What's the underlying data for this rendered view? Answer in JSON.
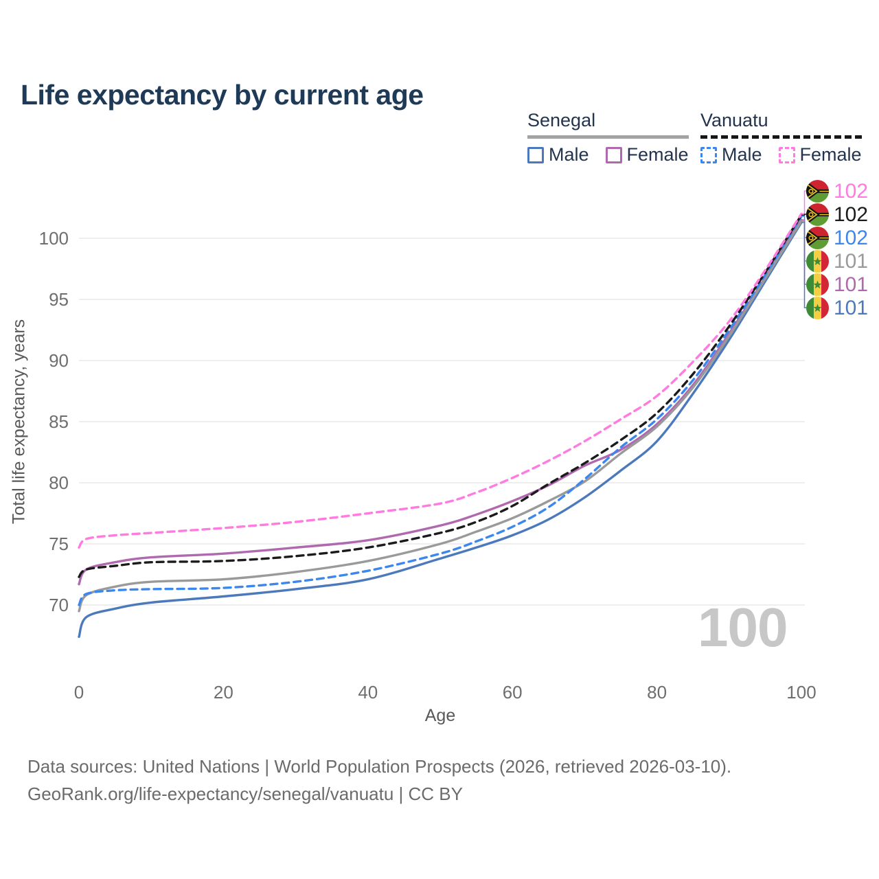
{
  "title": "Life expectancy by current age",
  "watermark": "100",
  "legend": {
    "groups": [
      {
        "label": "Senegal",
        "line_style": "solid",
        "line_color": "#a3a3a3",
        "items": [
          {
            "label": "Male",
            "color": "#4b79bb",
            "dashed": false
          },
          {
            "label": "Female",
            "color": "#b069ae",
            "dashed": false
          }
        ]
      },
      {
        "label": "Vanuatu",
        "line_style": "dashed",
        "line_color": "#161616",
        "items": [
          {
            "label": "Male",
            "color": "#3c87ee",
            "dashed": true
          },
          {
            "label": "Female",
            "color": "#ff7be0",
            "dashed": true
          }
        ]
      }
    ]
  },
  "footer": {
    "line1": "Data sources: United Nations | World Population Prospects (2026, retrieved 2026-03-10).",
    "line2": "GeoRank.org/life-expectancy/senegal/vanuatu | CC BY"
  },
  "chart_data": {
    "type": "line",
    "title": "Life expectancy by current age",
    "xlabel": "Age",
    "ylabel": "Total life expectancy, years",
    "xlim": [
      0,
      100
    ],
    "ylim": [
      66,
      103
    ],
    "x_ticks": [
      0,
      20,
      40,
      60,
      80,
      100
    ],
    "y_ticks": [
      70,
      75,
      80,
      85,
      90,
      95,
      100
    ],
    "grid": "horizontal",
    "legend_position": "top-right",
    "x": [
      0,
      1,
      5,
      10,
      20,
      30,
      40,
      50,
      55,
      60,
      65,
      70,
      75,
      80,
      85,
      90,
      95,
      100
    ],
    "series": [
      {
        "name": "Vanuatu Female",
        "country": "vanuatu",
        "color": "#ff7be0",
        "dashed": true,
        "end_label": "102",
        "values": [
          74.7,
          75.4,
          75.7,
          75.9,
          76.3,
          76.8,
          77.5,
          78.3,
          79.2,
          80.4,
          81.8,
          83.4,
          85.2,
          87.1,
          89.9,
          93.2,
          97.4,
          102.0
        ]
      },
      {
        "name": "Vanuatu Both sexes",
        "country": "vanuatu",
        "color": "#1b1b1b",
        "dashed": true,
        "end_label": "102",
        "values": [
          72.3,
          72.9,
          73.2,
          73.5,
          73.6,
          74.0,
          74.7,
          75.9,
          76.8,
          78.1,
          79.9,
          81.6,
          83.5,
          85.7,
          88.9,
          92.8,
          97.2,
          101.9
        ]
      },
      {
        "name": "Vanuatu Male",
        "country": "vanuatu",
        "color": "#3c87ee",
        "dashed": true,
        "end_label": "102",
        "values": [
          70.0,
          70.9,
          71.2,
          71.3,
          71.4,
          71.9,
          72.8,
          74.2,
          75.2,
          76.4,
          78.0,
          80.3,
          82.9,
          85.2,
          88.4,
          92.5,
          97.0,
          101.8
        ]
      },
      {
        "name": "Senegal Both sexes",
        "country": "senegal",
        "color": "#9a9a9a",
        "dashed": false,
        "end_label": "101",
        "values": [
          69.5,
          70.8,
          71.5,
          71.9,
          72.1,
          72.7,
          73.6,
          75.0,
          76.0,
          77.1,
          78.5,
          80.1,
          82.4,
          84.6,
          87.8,
          92.0,
          96.7,
          101.4
        ]
      },
      {
        "name": "Senegal Female",
        "country": "senegal",
        "color": "#b069ae",
        "dashed": false,
        "end_label": "101",
        "values": [
          71.7,
          72.9,
          73.5,
          73.9,
          74.2,
          74.7,
          75.3,
          76.5,
          77.4,
          78.5,
          79.8,
          81.4,
          82.7,
          84.8,
          88.0,
          92.2,
          96.8,
          101.5
        ]
      },
      {
        "name": "Senegal Male",
        "country": "senegal",
        "color": "#4b79bb",
        "dashed": false,
        "end_label": "101",
        "values": [
          67.4,
          69.0,
          69.7,
          70.2,
          70.7,
          71.3,
          72.1,
          73.8,
          74.7,
          75.7,
          77.0,
          78.8,
          81.0,
          83.4,
          87.3,
          91.7,
          96.5,
          101.3
        ]
      }
    ]
  }
}
